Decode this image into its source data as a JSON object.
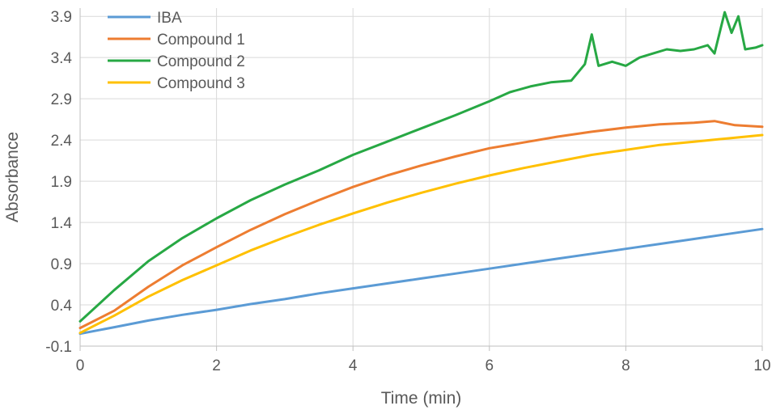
{
  "chart_data": {
    "type": "line",
    "xlabel": "Time (min)",
    "ylabel": "Absorbance",
    "xlim": [
      0,
      10
    ],
    "ylim": [
      -0.1,
      4.0
    ],
    "xticks": [
      0,
      2,
      4,
      6,
      8,
      10
    ],
    "yticks": [
      -0.1,
      0.4,
      0.9,
      1.4,
      1.9,
      2.4,
      2.9,
      3.4,
      3.9
    ],
    "grid": true,
    "legend_position": "top-left",
    "series": [
      {
        "name": "IBA",
        "color": "#5b9bd5",
        "x": [
          0,
          0.5,
          1,
          1.5,
          2,
          2.5,
          3,
          3.5,
          4,
          4.5,
          5,
          5.5,
          6,
          6.5,
          7,
          7.5,
          8,
          8.5,
          9,
          9.5,
          10
        ],
        "y": [
          0.05,
          0.13,
          0.21,
          0.28,
          0.34,
          0.41,
          0.47,
          0.54,
          0.6,
          0.66,
          0.72,
          0.78,
          0.84,
          0.9,
          0.96,
          1.02,
          1.08,
          1.14,
          1.2,
          1.26,
          1.32
        ]
      },
      {
        "name": "Compound 1",
        "color": "#ed7d31",
        "x": [
          0,
          0.5,
          1,
          1.5,
          2,
          2.5,
          3,
          3.5,
          4,
          4.5,
          5,
          5.5,
          6,
          6.5,
          7,
          7.5,
          8,
          8.5,
          9,
          9.3,
          9.6,
          10
        ],
        "y": [
          0.12,
          0.33,
          0.62,
          0.88,
          1.1,
          1.31,
          1.5,
          1.67,
          1.83,
          1.97,
          2.09,
          2.2,
          2.3,
          2.37,
          2.44,
          2.5,
          2.55,
          2.59,
          2.61,
          2.63,
          2.58,
          2.56
        ]
      },
      {
        "name": "Compound 2",
        "color": "#27a844",
        "x": [
          0,
          0.5,
          1,
          1.5,
          2,
          2.5,
          3,
          3.5,
          4,
          4.5,
          5,
          5.5,
          6,
          6.3,
          6.6,
          6.9,
          7.2,
          7.4,
          7.5,
          7.6,
          7.8,
          8.0,
          8.2,
          8.4,
          8.6,
          8.8,
          9.0,
          9.2,
          9.3,
          9.45,
          9.55,
          9.65,
          9.75,
          9.9,
          10
        ],
        "y": [
          0.2,
          0.58,
          0.93,
          1.21,
          1.45,
          1.67,
          1.86,
          2.03,
          2.22,
          2.38,
          2.54,
          2.7,
          2.87,
          2.98,
          3.05,
          3.1,
          3.12,
          3.32,
          3.68,
          3.3,
          3.35,
          3.3,
          3.4,
          3.45,
          3.5,
          3.48,
          3.5,
          3.55,
          3.45,
          3.95,
          3.7,
          3.9,
          3.5,
          3.52,
          3.55
        ]
      },
      {
        "name": "Compound 3",
        "color": "#ffc000",
        "x": [
          0,
          0.5,
          1,
          1.5,
          2,
          2.5,
          3,
          3.5,
          4,
          4.5,
          5,
          5.5,
          6,
          6.5,
          7,
          7.5,
          8,
          8.5,
          9,
          9.5,
          10
        ],
        "y": [
          0.06,
          0.27,
          0.5,
          0.7,
          0.88,
          1.06,
          1.22,
          1.37,
          1.51,
          1.64,
          1.76,
          1.87,
          1.97,
          2.06,
          2.14,
          2.22,
          2.28,
          2.34,
          2.38,
          2.42,
          2.46
        ]
      }
    ]
  }
}
